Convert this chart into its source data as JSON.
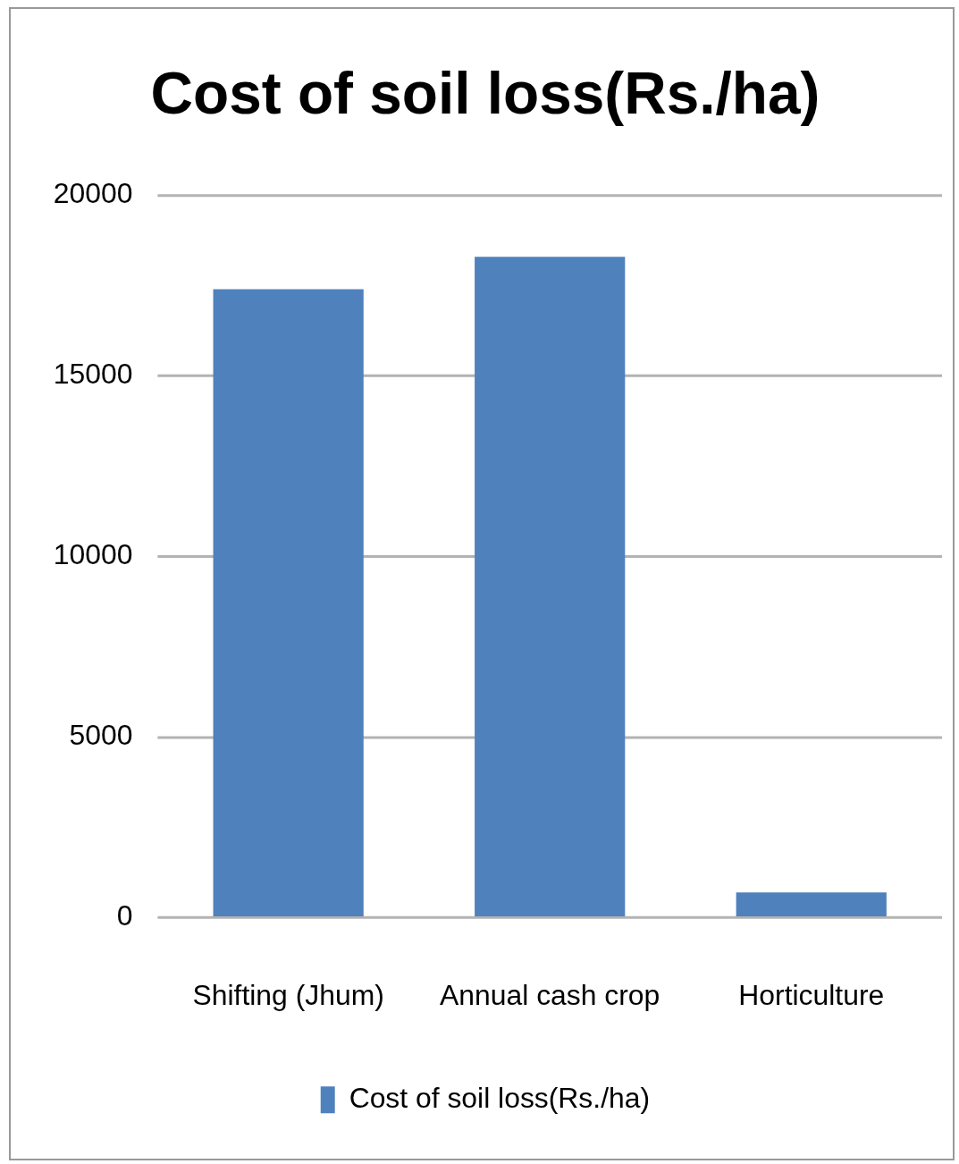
{
  "chart_data": {
    "type": "bar",
    "title": "Cost of soil loss(Rs./ha)",
    "categories": [
      "Shifting (Jhum)",
      "Annual cash crop",
      "Horticulture"
    ],
    "series": [
      {
        "name": "Cost of soil loss(Rs./ha)",
        "color": "#4f81bd",
        "values": [
          17400,
          18300,
          700
        ]
      }
    ],
    "ylim": [
      0,
      20000
    ],
    "yticks": [
      0,
      5000,
      10000,
      15000,
      20000
    ],
    "grid": "y",
    "legend": "bottom"
  }
}
